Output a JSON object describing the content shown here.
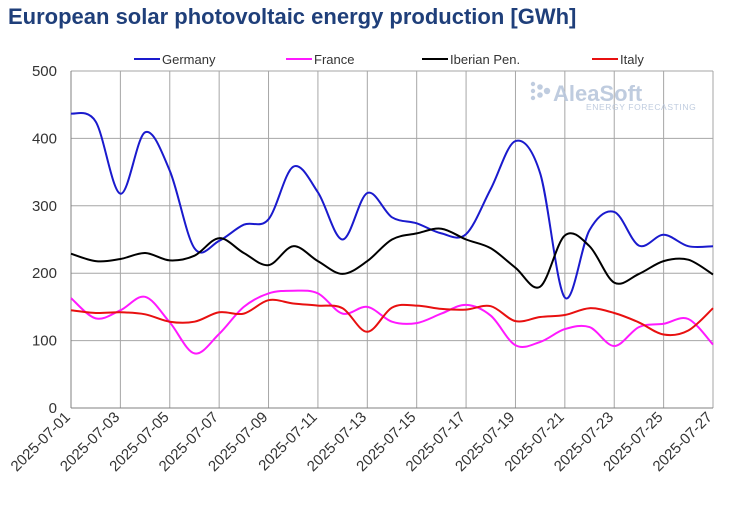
{
  "page": {
    "title": "European solar photovoltaic energy production [GWh]"
  },
  "logo": {
    "main": "AleaSoft",
    "sub": "ENERGY FORECASTING"
  },
  "chart_data": {
    "type": "line",
    "title": "European solar photovoltaic energy production [GWh]",
    "xlabel": "",
    "ylabel": "",
    "ylim": [
      0,
      500
    ],
    "yticks": [
      0,
      100,
      200,
      300,
      400,
      500
    ],
    "grid": {
      "horizontal": true,
      "vertical": true
    },
    "legend_position": "top",
    "x": [
      "2025-07-01",
      "2025-07-02",
      "2025-07-03",
      "2025-07-04",
      "2025-07-05",
      "2025-07-06",
      "2025-07-07",
      "2025-07-08",
      "2025-07-09",
      "2025-07-10",
      "2025-07-11",
      "2025-07-12",
      "2025-07-13",
      "2025-07-14",
      "2025-07-15",
      "2025-07-16",
      "2025-07-17",
      "2025-07-18",
      "2025-07-19",
      "2025-07-20",
      "2025-07-21",
      "2025-07-22",
      "2025-07-23",
      "2025-07-24",
      "2025-07-25",
      "2025-07-26",
      "2025-07-27"
    ],
    "xtick_labels": [
      "2025-07-01",
      "2025-07-03",
      "2025-07-05",
      "2025-07-07",
      "2025-07-09",
      "2025-07-11",
      "2025-07-13",
      "2025-07-15",
      "2025-07-17",
      "2025-07-19",
      "2025-07-21",
      "2025-07-23",
      "2025-07-25",
      "2025-07-27"
    ],
    "series": [
      {
        "name": "Germany",
        "color": "#1a1acd",
        "values": [
          437,
          425,
          318,
          409,
          352,
          237,
          248,
          272,
          280,
          358,
          320,
          250,
          319,
          283,
          274,
          259,
          258,
          325,
          396,
          348,
          164,
          264,
          291,
          241,
          257,
          240,
          240
        ]
      },
      {
        "name": "France",
        "color": "#ff19ff",
        "values": [
          163,
          133,
          145,
          165,
          127,
          81,
          110,
          150,
          170,
          174,
          170,
          140,
          150,
          128,
          126,
          140,
          153,
          137,
          93,
          98,
          117,
          120,
          92,
          120,
          125,
          132,
          94
        ]
      },
      {
        "name": "Iberian Pen.",
        "color": "#000000",
        "values": [
          229,
          218,
          221,
          230,
          219,
          226,
          252,
          230,
          212,
          240,
          218,
          199,
          218,
          250,
          259,
          266,
          250,
          237,
          208,
          180,
          256,
          240,
          186,
          199,
          218,
          220,
          198
        ]
      },
      {
        "name": "Italy",
        "color": "#e81010",
        "values": [
          145,
          141,
          142,
          139,
          128,
          128,
          142,
          140,
          160,
          155,
          152,
          148,
          113,
          149,
          152,
          147,
          146,
          151,
          129,
          135,
          138,
          148,
          141,
          127,
          109,
          115,
          148
        ]
      }
    ]
  }
}
